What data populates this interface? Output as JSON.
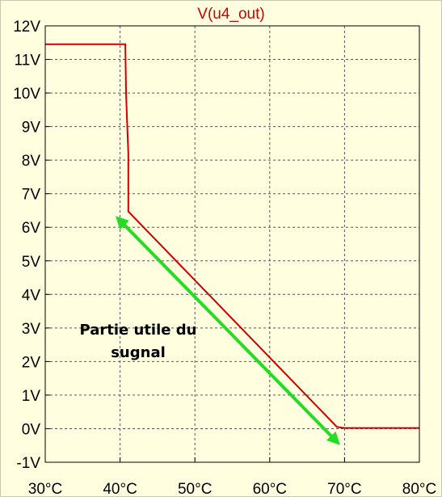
{
  "chart_data": {
    "type": "line",
    "title": "V(u4_out)",
    "xlabel": "",
    "ylabel": "",
    "x_ticks": [
      "30°C",
      "40°C",
      "50°C",
      "60°C",
      "70°C",
      "80°C"
    ],
    "y_ticks": [
      "12V",
      "11V",
      "10V",
      "9V",
      "8V",
      "7V",
      "6V",
      "5V",
      "4V",
      "3V",
      "2V",
      "1V",
      "0V",
      "-1V"
    ],
    "xlim": [
      30,
      80
    ],
    "ylim": [
      -1,
      12
    ],
    "grid": true,
    "series": [
      {
        "name": "V(u4_out)",
        "color": "#cc0000",
        "x": [
          30,
          40.7,
          40.8,
          40.9,
          41.1,
          41.1,
          69.0,
          70.0,
          80.0
        ],
        "y": [
          11.45,
          11.45,
          10.0,
          9.4,
          8.2,
          6.47,
          0.05,
          0.02,
          0.02
        ]
      }
    ],
    "annotations": {
      "arrow": {
        "color": "#22dd22",
        "from": [
          40.0,
          6.2
        ],
        "to": [
          68.8,
          -0.35
        ]
      },
      "text_line1": "Partie utile du",
      "text_line2": "sugnal"
    }
  }
}
